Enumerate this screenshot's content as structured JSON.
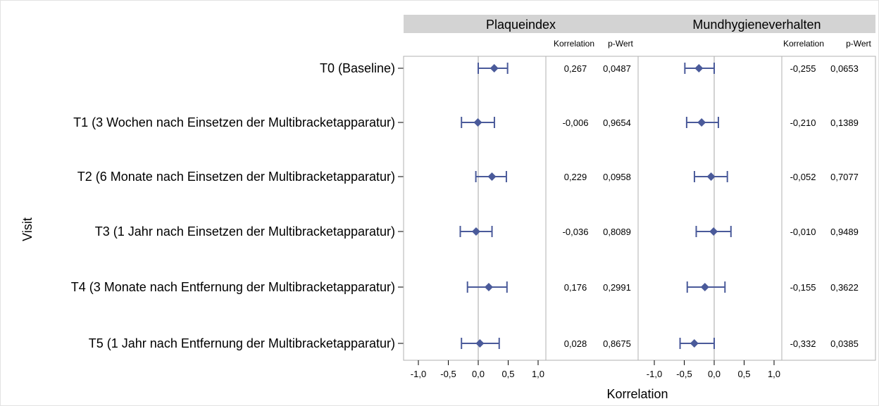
{
  "chart_data": {
    "type": "forest",
    "ylabel": "Visit",
    "xlabel": "Korrelation",
    "xlim": [
      -1.0,
      1.0
    ],
    "xticks": [
      "-1,0",
      "-0,5",
      "0,0",
      "0,5",
      "1,0"
    ],
    "xtick_values": [
      -1.0,
      -0.5,
      0.0,
      0.5,
      1.0
    ],
    "reference_line": 0.0,
    "visits": [
      "T0 (Baseline)",
      "T1 (3 Wochen nach Einsetzen der Multibracketapparatur)",
      "T2 (6 Monate nach Einsetzen der Multibracketapparatur)",
      "T3 (1 Jahr nach Einsetzen der Multibracketapparatur)",
      "T4 (3 Monate nach Entfernung der Multibracketapparatur)",
      "T5 (1 Jahr nach Entfernung der Multibracketapparatur)"
    ],
    "col_korrelation": "Korrelation",
    "col_pwert": "p-Wert",
    "colors": {
      "marker": "#4a5a9a",
      "header_bg": "#d3d3d3",
      "frame": "#b0b0b0",
      "refline": "#b3b3b3"
    },
    "panels": [
      {
        "name": "Plaqueindex",
        "estimates": [
          0.267,
          -0.006,
          0.229,
          -0.036,
          0.176,
          0.028
        ],
        "ci_low": [
          0.0,
          -0.28,
          -0.04,
          -0.3,
          -0.18,
          -0.28
        ],
        "ci_high": [
          0.49,
          0.27,
          0.47,
          0.23,
          0.48,
          0.35
        ],
        "korrelation_text": [
          "0,267",
          "-0,006",
          "0,229",
          "-0,036",
          "0,176",
          "0,028"
        ],
        "pwert_text": [
          "0,0487",
          "0,9654",
          "0,0958",
          "0,8089",
          "0,2991",
          "0,8675"
        ]
      },
      {
        "name": "Mundhygieneverhalten",
        "estimates": [
          -0.255,
          -0.21,
          -0.052,
          -0.01,
          -0.155,
          -0.332
        ],
        "ci_low": [
          -0.49,
          -0.46,
          -0.33,
          -0.3,
          -0.45,
          -0.57
        ],
        "ci_high": [
          0.0,
          0.07,
          0.22,
          0.28,
          0.18,
          0.0
        ],
        "korrelation_text": [
          "-0,255",
          "-0,210",
          "-0,052",
          "-0,010",
          "-0,155",
          "-0,332"
        ],
        "pwert_text": [
          "0,0653",
          "0,1389",
          "0,7077",
          "0,9489",
          "0,3622",
          "0,0385"
        ]
      }
    ]
  }
}
